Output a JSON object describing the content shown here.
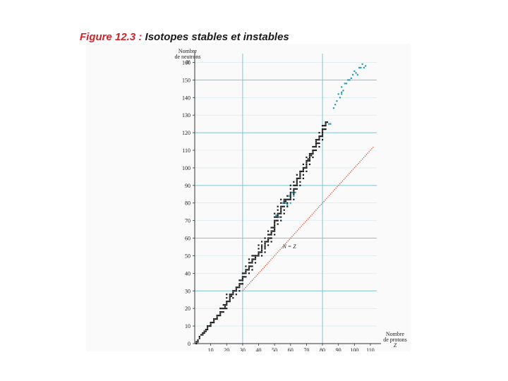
{
  "title": {
    "figure_number": "Figure 12.3 :",
    "text": "Isotopes stables et instables"
  },
  "chart_data": {
    "type": "scatter",
    "title": "Figure 12.3 : Isotopes stables et instables",
    "ylabel_lines": [
      "Nombre",
      "de neutrons",
      "N"
    ],
    "xlabel_lines": [
      "Nombre",
      "de protons",
      "Z"
    ],
    "line_label": "N = Z",
    "xlim": [
      0,
      114
    ],
    "ylim": [
      0,
      165
    ],
    "x_ticks": [
      10,
      20,
      30,
      40,
      50,
      60,
      70,
      80,
      90,
      100,
      110
    ],
    "y_ticks": [
      0,
      10,
      20,
      30,
      40,
      50,
      60,
      70,
      80,
      90,
      100,
      110,
      120,
      130,
      140,
      150,
      160
    ],
    "major_grid_x": [
      30,
      80
    ],
    "major_grid_y": [
      30,
      60,
      90,
      120,
      150
    ],
    "reference_line": {
      "name": "N = Z",
      "from": [
        30,
        30
      ],
      "to": [
        112,
        112
      ],
      "color": "#d9482f"
    },
    "series": [
      {
        "color": "#1a1a1a",
        "points": [
          [
            1,
            0
          ],
          [
            1,
            1
          ],
          [
            2,
            1
          ],
          [
            2,
            2
          ],
          [
            3,
            3
          ],
          [
            3,
            4
          ],
          [
            4,
            5
          ],
          [
            5,
            5
          ],
          [
            5,
            6
          ],
          [
            6,
            6
          ],
          [
            6,
            7
          ],
          [
            7,
            7
          ],
          [
            7,
            8
          ],
          [
            8,
            8
          ],
          [
            8,
            9
          ],
          [
            8,
            10
          ],
          [
            9,
            10
          ],
          [
            10,
            10
          ],
          [
            10,
            11
          ],
          [
            10,
            12
          ],
          [
            11,
            12
          ],
          [
            12,
            12
          ],
          [
            12,
            13
          ],
          [
            12,
            14
          ],
          [
            13,
            14
          ],
          [
            14,
            14
          ],
          [
            14,
            15
          ],
          [
            14,
            16
          ],
          [
            15,
            16
          ],
          [
            16,
            16
          ],
          [
            16,
            17
          ],
          [
            16,
            18
          ],
          [
            16,
            20
          ],
          [
            17,
            18
          ],
          [
            17,
            20
          ],
          [
            18,
            18
          ],
          [
            18,
            20
          ],
          [
            18,
            22
          ],
          [
            19,
            20
          ],
          [
            19,
            21
          ],
          [
            19,
            22
          ],
          [
            20,
            20
          ],
          [
            20,
            22
          ],
          [
            20,
            23
          ],
          [
            20,
            24
          ],
          [
            20,
            26
          ],
          [
            20,
            28
          ],
          [
            21,
            24
          ],
          [
            22,
            24
          ],
          [
            22,
            25
          ],
          [
            22,
            26
          ],
          [
            22,
            27
          ],
          [
            22,
            28
          ],
          [
            23,
            27
          ],
          [
            23,
            28
          ],
          [
            24,
            26
          ],
          [
            24,
            28
          ],
          [
            24,
            29
          ],
          [
            24,
            30
          ],
          [
            25,
            30
          ],
          [
            26,
            28
          ],
          [
            26,
            30
          ],
          [
            26,
            31
          ],
          [
            26,
            32
          ],
          [
            27,
            32
          ],
          [
            28,
            30
          ],
          [
            28,
            32
          ],
          [
            28,
            33
          ],
          [
            28,
            34
          ],
          [
            28,
            36
          ],
          [
            29,
            34
          ],
          [
            29,
            36
          ],
          [
            30,
            34
          ],
          [
            30,
            36
          ],
          [
            30,
            37
          ],
          [
            30,
            38
          ],
          [
            30,
            40
          ],
          [
            31,
            38
          ],
          [
            31,
            40
          ],
          [
            32,
            38
          ],
          [
            32,
            40
          ],
          [
            32,
            41
          ],
          [
            32,
            42
          ],
          [
            32,
            44
          ],
          [
            33,
            42
          ],
          [
            34,
            40
          ],
          [
            34,
            42
          ],
          [
            34,
            43
          ],
          [
            34,
            44
          ],
          [
            34,
            46
          ],
          [
            34,
            48
          ],
          [
            35,
            44
          ],
          [
            35,
            46
          ],
          [
            36,
            42
          ],
          [
            36,
            44
          ],
          [
            36,
            46
          ],
          [
            36,
            47
          ],
          [
            36,
            48
          ],
          [
            36,
            50
          ],
          [
            37,
            48
          ],
          [
            37,
            50
          ],
          [
            38,
            46
          ],
          [
            38,
            48
          ],
          [
            38,
            49
          ],
          [
            38,
            50
          ],
          [
            39,
            50
          ],
          [
            40,
            50
          ],
          [
            40,
            51
          ],
          [
            40,
            52
          ],
          [
            40,
            54
          ],
          [
            40,
            56
          ],
          [
            41,
            52
          ],
          [
            42,
            50
          ],
          [
            42,
            52
          ],
          [
            42,
            53
          ],
          [
            42,
            54
          ],
          [
            42,
            55
          ],
          [
            42,
            56
          ],
          [
            42,
            58
          ],
          [
            44,
            52
          ],
          [
            44,
            54
          ],
          [
            44,
            55
          ],
          [
            44,
            56
          ],
          [
            44,
            57
          ],
          [
            44,
            58
          ],
          [
            44,
            60
          ],
          [
            45,
            58
          ],
          [
            46,
            56
          ],
          [
            46,
            58
          ],
          [
            46,
            59
          ],
          [
            46,
            60
          ],
          [
            46,
            62
          ],
          [
            46,
            64
          ],
          [
            47,
            60
          ],
          [
            47,
            62
          ],
          [
            48,
            58
          ],
          [
            48,
            60
          ],
          [
            48,
            62
          ],
          [
            48,
            63
          ],
          [
            48,
            64
          ],
          [
            48,
            66
          ],
          [
            49,
            64
          ],
          [
            49,
            66
          ],
          [
            50,
            62
          ],
          [
            50,
            64
          ],
          [
            50,
            65
          ],
          [
            50,
            66
          ],
          [
            50,
            67
          ],
          [
            50,
            68
          ],
          [
            50,
            69
          ],
          [
            50,
            70
          ],
          [
            50,
            72
          ],
          [
            50,
            74
          ],
          [
            51,
            70
          ],
          [
            51,
            72
          ],
          [
            52,
            68
          ],
          [
            52,
            70
          ],
          [
            52,
            72
          ],
          [
            52,
            73
          ],
          [
            52,
            74
          ],
          [
            52,
            76
          ],
          [
            52,
            78
          ],
          [
            53,
            74
          ],
          [
            54,
            70
          ],
          [
            54,
            72
          ],
          [
            54,
            74
          ],
          [
            54,
            75
          ],
          [
            54,
            76
          ],
          [
            54,
            77
          ],
          [
            54,
            78
          ],
          [
            54,
            80
          ],
          [
            54,
            82
          ],
          [
            55,
            78
          ],
          [
            56,
            74
          ],
          [
            56,
            76
          ],
          [
            56,
            78
          ],
          [
            56,
            80
          ],
          [
            56,
            81
          ],
          [
            56,
            82
          ],
          [
            57,
            81
          ],
          [
            57,
            82
          ],
          [
            58,
            78
          ],
          [
            58,
            80
          ],
          [
            58,
            82
          ],
          [
            58,
            84
          ],
          [
            59,
            82
          ],
          [
            60,
            82
          ],
          [
            60,
            83
          ],
          [
            60,
            84
          ],
          [
            60,
            85
          ],
          [
            60,
            86
          ],
          [
            60,
            88
          ],
          [
            60,
            90
          ],
          [
            62,
            82
          ],
          [
            62,
            85
          ],
          [
            62,
            86
          ],
          [
            62,
            87
          ],
          [
            62,
            88
          ],
          [
            62,
            90
          ],
          [
            62,
            92
          ],
          [
            63,
            88
          ],
          [
            63,
            90
          ],
          [
            64,
            88
          ],
          [
            64,
            90
          ],
          [
            64,
            91
          ],
          [
            64,
            92
          ],
          [
            64,
            93
          ],
          [
            64,
            94
          ],
          [
            64,
            96
          ],
          [
            65,
            94
          ],
          [
            66,
            90
          ],
          [
            66,
            92
          ],
          [
            66,
            94
          ],
          [
            66,
            95
          ],
          [
            66,
            96
          ],
          [
            66,
            97
          ],
          [
            66,
            98
          ],
          [
            67,
            98
          ],
          [
            68,
            94
          ],
          [
            68,
            96
          ],
          [
            68,
            98
          ],
          [
            68,
            99
          ],
          [
            68,
            100
          ],
          [
            68,
            102
          ],
          [
            69,
            100
          ],
          [
            70,
            98
          ],
          [
            70,
            100
          ],
          [
            70,
            101
          ],
          [
            70,
            102
          ],
          [
            70,
            103
          ],
          [
            70,
            104
          ],
          [
            70,
            106
          ],
          [
            71,
            104
          ],
          [
            71,
            105
          ],
          [
            72,
            102
          ],
          [
            72,
            104
          ],
          [
            72,
            105
          ],
          [
            72,
            106
          ],
          [
            72,
            107
          ],
          [
            72,
            108
          ],
          [
            73,
            107
          ],
          [
            73,
            108
          ],
          [
            74,
            106
          ],
          [
            74,
            108
          ],
          [
            74,
            109
          ],
          [
            74,
            110
          ],
          [
            74,
            112
          ],
          [
            75,
            110
          ],
          [
            75,
            112
          ],
          [
            76,
            110
          ],
          [
            76,
            112
          ],
          [
            76,
            113
          ],
          [
            76,
            114
          ],
          [
            76,
            115
          ],
          [
            76,
            116
          ],
          [
            77,
            114
          ],
          [
            77,
            116
          ],
          [
            78,
            112
          ],
          [
            78,
            114
          ],
          [
            78,
            116
          ],
          [
            78,
            117
          ],
          [
            78,
            118
          ],
          [
            78,
            120
          ],
          [
            79,
            118
          ],
          [
            80,
            116
          ],
          [
            80,
            118
          ],
          [
            80,
            119
          ],
          [
            80,
            120
          ],
          [
            80,
            121
          ],
          [
            80,
            122
          ],
          [
            80,
            124
          ],
          [
            81,
            122
          ],
          [
            81,
            124
          ],
          [
            82,
            122
          ],
          [
            82,
            124
          ],
          [
            82,
            125
          ],
          [
            82,
            126
          ],
          [
            83,
            126
          ]
        ]
      },
      {
        "color": "#2a9fb8",
        "points": [
          [
            51,
            73
          ],
          [
            53,
            72
          ],
          [
            55,
            80
          ],
          [
            57,
            80
          ],
          [
            58,
            79
          ],
          [
            59,
            84
          ],
          [
            60,
            80
          ],
          [
            61,
            86
          ],
          [
            62,
            84
          ],
          [
            63,
            86
          ],
          [
            84,
            125
          ],
          [
            85,
            125
          ],
          [
            87,
            134
          ],
          [
            88,
            136
          ],
          [
            89,
            138
          ],
          [
            90,
            142
          ],
          [
            91,
            140
          ],
          [
            92,
            142
          ],
          [
            92,
            143
          ],
          [
            92,
            146
          ],
          [
            93,
            144
          ],
          [
            94,
            148
          ],
          [
            95,
            148
          ],
          [
            96,
            150
          ],
          [
            97,
            150
          ],
          [
            98,
            151
          ],
          [
            99,
            153
          ],
          [
            100,
            155
          ],
          [
            101,
            154
          ],
          [
            102,
            153
          ],
          [
            103,
            157
          ],
          [
            104,
            157
          ],
          [
            105,
            159
          ],
          [
            106,
            157
          ],
          [
            107,
            158
          ]
        ]
      }
    ]
  }
}
